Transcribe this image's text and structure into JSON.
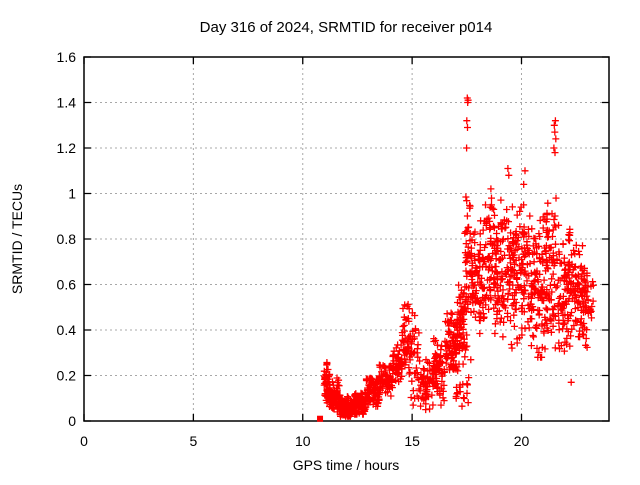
{
  "chart_data": {
    "type": "scatter",
    "title": "Day 316 of 2024, SRMTID for receiver p014",
    "xlabel": "GPS time / hours",
    "ylabel": "SRMTID / TECUs",
    "xlim": [
      0,
      24
    ],
    "ylim": [
      0,
      1.6
    ],
    "xticks": [
      0,
      5,
      10,
      15,
      20
    ],
    "xtick_labels": [
      "0",
      "5",
      "10",
      "15",
      "20"
    ],
    "yticks": [
      0,
      0.2,
      0.4,
      0.6,
      0.8,
      1.0,
      1.2,
      1.4,
      1.6
    ],
    "ytick_labels": [
      "0",
      "0.2",
      "0.4",
      "0.6",
      "0.8",
      "1",
      "1.2",
      "1.4",
      "1.6"
    ],
    "grid": true,
    "legend": "none",
    "marker": "plus",
    "marker_color": "#ff0000",
    "grid_color": "#a8a8a8",
    "frame_color": "#000000",
    "background_color": "#ffffff",
    "segments_format": [
      "x_start",
      "x_end",
      "count",
      "y_min",
      "y_max",
      "peak_frac"
    ],
    "segments": [
      [
        10.98,
        11.25,
        50,
        0.08,
        0.28,
        0.45
      ],
      [
        11.2,
        11.7,
        70,
        0.04,
        0.2,
        0.4
      ],
      [
        11.7,
        12.3,
        90,
        0.02,
        0.13,
        0.35
      ],
      [
        12.3,
        12.9,
        90,
        0.03,
        0.14,
        0.4
      ],
      [
        12.9,
        13.5,
        80,
        0.06,
        0.2,
        0.5
      ],
      [
        13.5,
        14.1,
        70,
        0.11,
        0.26,
        0.5
      ],
      [
        14.1,
        14.55,
        50,
        0.15,
        0.34,
        0.5
      ],
      [
        14.55,
        14.85,
        35,
        0.22,
        0.62,
        0.35
      ],
      [
        14.85,
        15.35,
        45,
        0.1,
        0.55,
        0.4
      ],
      [
        15.35,
        15.95,
        55,
        0.05,
        0.3,
        0.45
      ],
      [
        15.95,
        16.5,
        70,
        0.07,
        0.38,
        0.5
      ],
      [
        16.5,
        17.05,
        75,
        0.18,
        0.48,
        0.5
      ],
      [
        17.0,
        17.6,
        18,
        0.05,
        0.25,
        0.4
      ],
      [
        17.05,
        17.4,
        55,
        0.25,
        0.6,
        0.45
      ],
      [
        17.4,
        17.7,
        55,
        0.25,
        1.05,
        0.5
      ],
      [
        17.7,
        18.35,
        85,
        0.32,
        0.88,
        0.55
      ],
      [
        18.35,
        19.0,
        90,
        0.35,
        0.95,
        0.55
      ],
      [
        19.0,
        19.65,
        85,
        0.3,
        1.0,
        0.5
      ],
      [
        19.65,
        20.35,
        95,
        0.33,
        0.95,
        0.5
      ],
      [
        20.35,
        21.05,
        95,
        0.28,
        0.95,
        0.45
      ],
      [
        21.05,
        21.65,
        85,
        0.3,
        1.0,
        0.5
      ],
      [
        21.65,
        22.35,
        95,
        0.28,
        0.9,
        0.45
      ],
      [
        22.35,
        23.0,
        90,
        0.28,
        0.8,
        0.5
      ],
      [
        23.0,
        23.3,
        15,
        0.38,
        0.66,
        0.5
      ]
    ],
    "outlier_points": [
      [
        17.52,
        1.42
      ],
      [
        17.56,
        1.41
      ],
      [
        17.54,
        1.4
      ],
      [
        17.5,
        1.32
      ],
      [
        17.53,
        1.29
      ],
      [
        17.49,
        1.2
      ],
      [
        18.6,
        1.02
      ],
      [
        18.63,
        0.98
      ],
      [
        18.57,
        0.94
      ],
      [
        19.38,
        1.11
      ],
      [
        19.42,
        1.08
      ],
      [
        20.16,
        1.1
      ],
      [
        20.1,
        1.04
      ],
      [
        21.55,
        1.32
      ],
      [
        21.5,
        1.3
      ],
      [
        21.52,
        1.27
      ],
      [
        21.57,
        1.24
      ],
      [
        21.48,
        1.2
      ],
      [
        21.53,
        1.18
      ],
      [
        22.27,
        0.17
      ],
      [
        15.05,
        0.07
      ]
    ],
    "start_marker": {
      "x": 10.79,
      "y": 0.01,
      "type": "filled-square"
    }
  }
}
